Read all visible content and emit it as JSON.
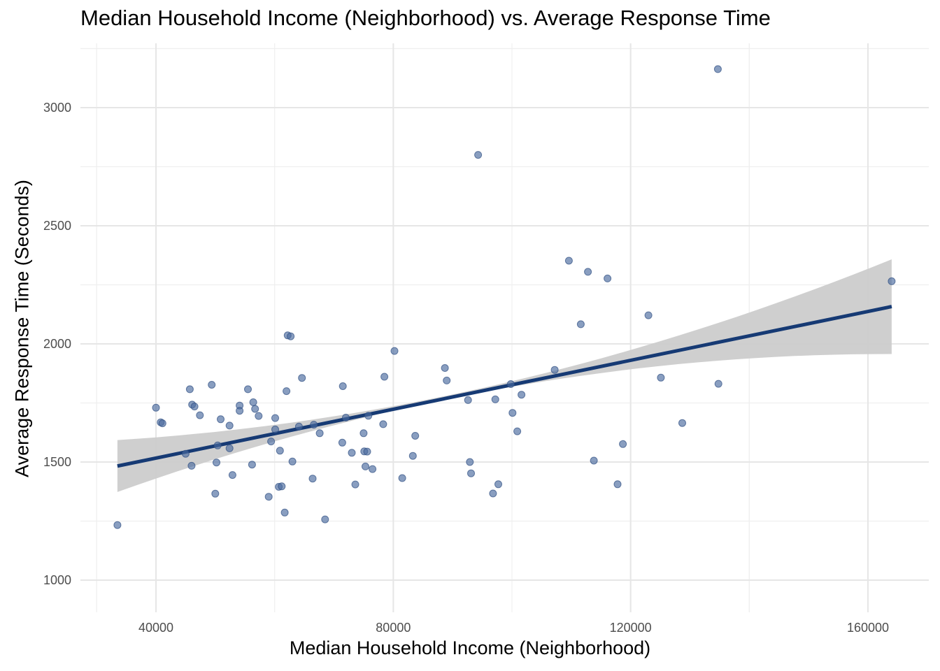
{
  "chart_data": {
    "type": "scatter",
    "title": "Median Household Income (Neighborhood) vs. Average Response Time",
    "xlabel": "Median Household Income (Neighborhood)",
    "ylabel": "Average Response Time (Seconds)",
    "xlim": [
      28000,
      170000
    ],
    "ylim": [
      880,
      3290
    ],
    "x_ticks": [
      40000,
      80000,
      120000,
      160000
    ],
    "x_tick_labels": [
      "40000",
      "80000",
      "120000",
      "160000"
    ],
    "x_minor_ticks": [
      60000,
      100000,
      140000
    ],
    "y_ticks": [
      1000,
      1500,
      2000,
      2500,
      3000
    ],
    "y_tick_labels": [
      "1000",
      "1500",
      "2000",
      "2500",
      "3000"
    ],
    "y_minor_ticks": [
      1250,
      1750,
      2250,
      2750
    ],
    "grid": true,
    "point_color": "#4a6a9e",
    "line_color": "#163a74",
    "band_color": "#cccccc",
    "trend": {
      "type": "linear",
      "x": [
        33500,
        164000
      ],
      "y": [
        1483,
        2158
      ],
      "ci_lower": [
        1373,
        1957
      ],
      "ci_upper": [
        1593,
        2358
      ],
      "ci_mid_x": 76800,
      "ci_mid_lower": [
        1698
      ],
      "ci_mid_upper": [
        1722
      ]
    },
    "points": [
      [
        33500,
        1233
      ],
      [
        40000,
        1730
      ],
      [
        40800,
        1668
      ],
      [
        41100,
        1664
      ],
      [
        45000,
        1535
      ],
      [
        45700,
        1808
      ],
      [
        46000,
        1484
      ],
      [
        46100,
        1743
      ],
      [
        46500,
        1735
      ],
      [
        47400,
        1698
      ],
      [
        49400,
        1827
      ],
      [
        50000,
        1366
      ],
      [
        50200,
        1498
      ],
      [
        50400,
        1570
      ],
      [
        50900,
        1681
      ],
      [
        52400,
        1654
      ],
      [
        52400,
        1558
      ],
      [
        52900,
        1445
      ],
      [
        54100,
        1739
      ],
      [
        54100,
        1717
      ],
      [
        55500,
        1808
      ],
      [
        56200,
        1489
      ],
      [
        56400,
        1753
      ],
      [
        56700,
        1725
      ],
      [
        57300,
        1695
      ],
      [
        59000,
        1353
      ],
      [
        59400,
        1587
      ],
      [
        60100,
        1686
      ],
      [
        60100,
        1638
      ],
      [
        60700,
        1395
      ],
      [
        60900,
        1548
      ],
      [
        61200,
        1397
      ],
      [
        61700,
        1286
      ],
      [
        62000,
        1800
      ],
      [
        62200,
        2036
      ],
      [
        62700,
        2032
      ],
      [
        63000,
        1502
      ],
      [
        64100,
        1650
      ],
      [
        64600,
        1856
      ],
      [
        66400,
        1430
      ],
      [
        66600,
        1658
      ],
      [
        67600,
        1622
      ],
      [
        68500,
        1257
      ],
      [
        71400,
        1582
      ],
      [
        71500,
        1821
      ],
      [
        72000,
        1688
      ],
      [
        73000,
        1539
      ],
      [
        73600,
        1405
      ],
      [
        75000,
        1622
      ],
      [
        75100,
        1545
      ],
      [
        75300,
        1481
      ],
      [
        75600,
        1544
      ],
      [
        75800,
        1696
      ],
      [
        76500,
        1470
      ],
      [
        78300,
        1660
      ],
      [
        78500,
        1861
      ],
      [
        80200,
        1970
      ],
      [
        81500,
        1432
      ],
      [
        83300,
        1526
      ],
      [
        83700,
        1611
      ],
      [
        88700,
        1898
      ],
      [
        89000,
        1845
      ],
      [
        92600,
        1762
      ],
      [
        92900,
        1500
      ],
      [
        93100,
        1452
      ],
      [
        94300,
        2800
      ],
      [
        96800,
        1367
      ],
      [
        97200,
        1765
      ],
      [
        97700,
        1406
      ],
      [
        99800,
        1830
      ],
      [
        100100,
        1708
      ],
      [
        100900,
        1630
      ],
      [
        101600,
        1785
      ],
      [
        107200,
        1890
      ],
      [
        109600,
        2352
      ],
      [
        111600,
        2083
      ],
      [
        112800,
        2305
      ],
      [
        113800,
        1506
      ],
      [
        116100,
        2277
      ],
      [
        117800,
        1406
      ],
      [
        118700,
        1576
      ],
      [
        123000,
        2121
      ],
      [
        125100,
        1857
      ],
      [
        128700,
        1665
      ],
      [
        134700,
        3163
      ],
      [
        134800,
        1831
      ],
      [
        164000,
        2265
      ]
    ]
  }
}
